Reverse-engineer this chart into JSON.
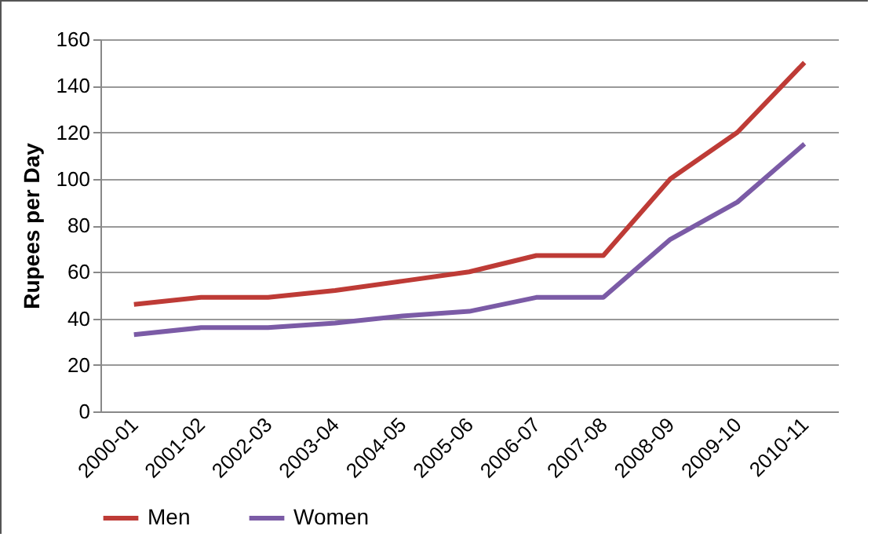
{
  "chart_data": {
    "type": "line",
    "ylabel": "Rupees per Day",
    "categories": [
      "2000-01",
      "2001-02",
      "2002-03",
      "2003-04",
      "2004-05",
      "2005-06",
      "2006-07",
      "2007-08",
      "2008-09",
      "2009-10",
      "2010-11"
    ],
    "series": [
      {
        "name": "Men",
        "color": "#be3b36",
        "values": [
          46,
          49,
          49,
          52,
          56,
          60,
          67,
          67,
          100,
          120,
          150
        ]
      },
      {
        "name": "Women",
        "color": "#7b5ba6",
        "values": [
          33,
          36,
          36,
          38,
          41,
          43,
          49,
          49,
          74,
          90,
          115
        ]
      }
    ],
    "ylim": [
      0,
      160
    ],
    "yticks": [
      0,
      20,
      40,
      60,
      80,
      100,
      120,
      140,
      160
    ],
    "grid": "y",
    "legend": "bottom",
    "marker": "none",
    "line_style": "solid"
  }
}
